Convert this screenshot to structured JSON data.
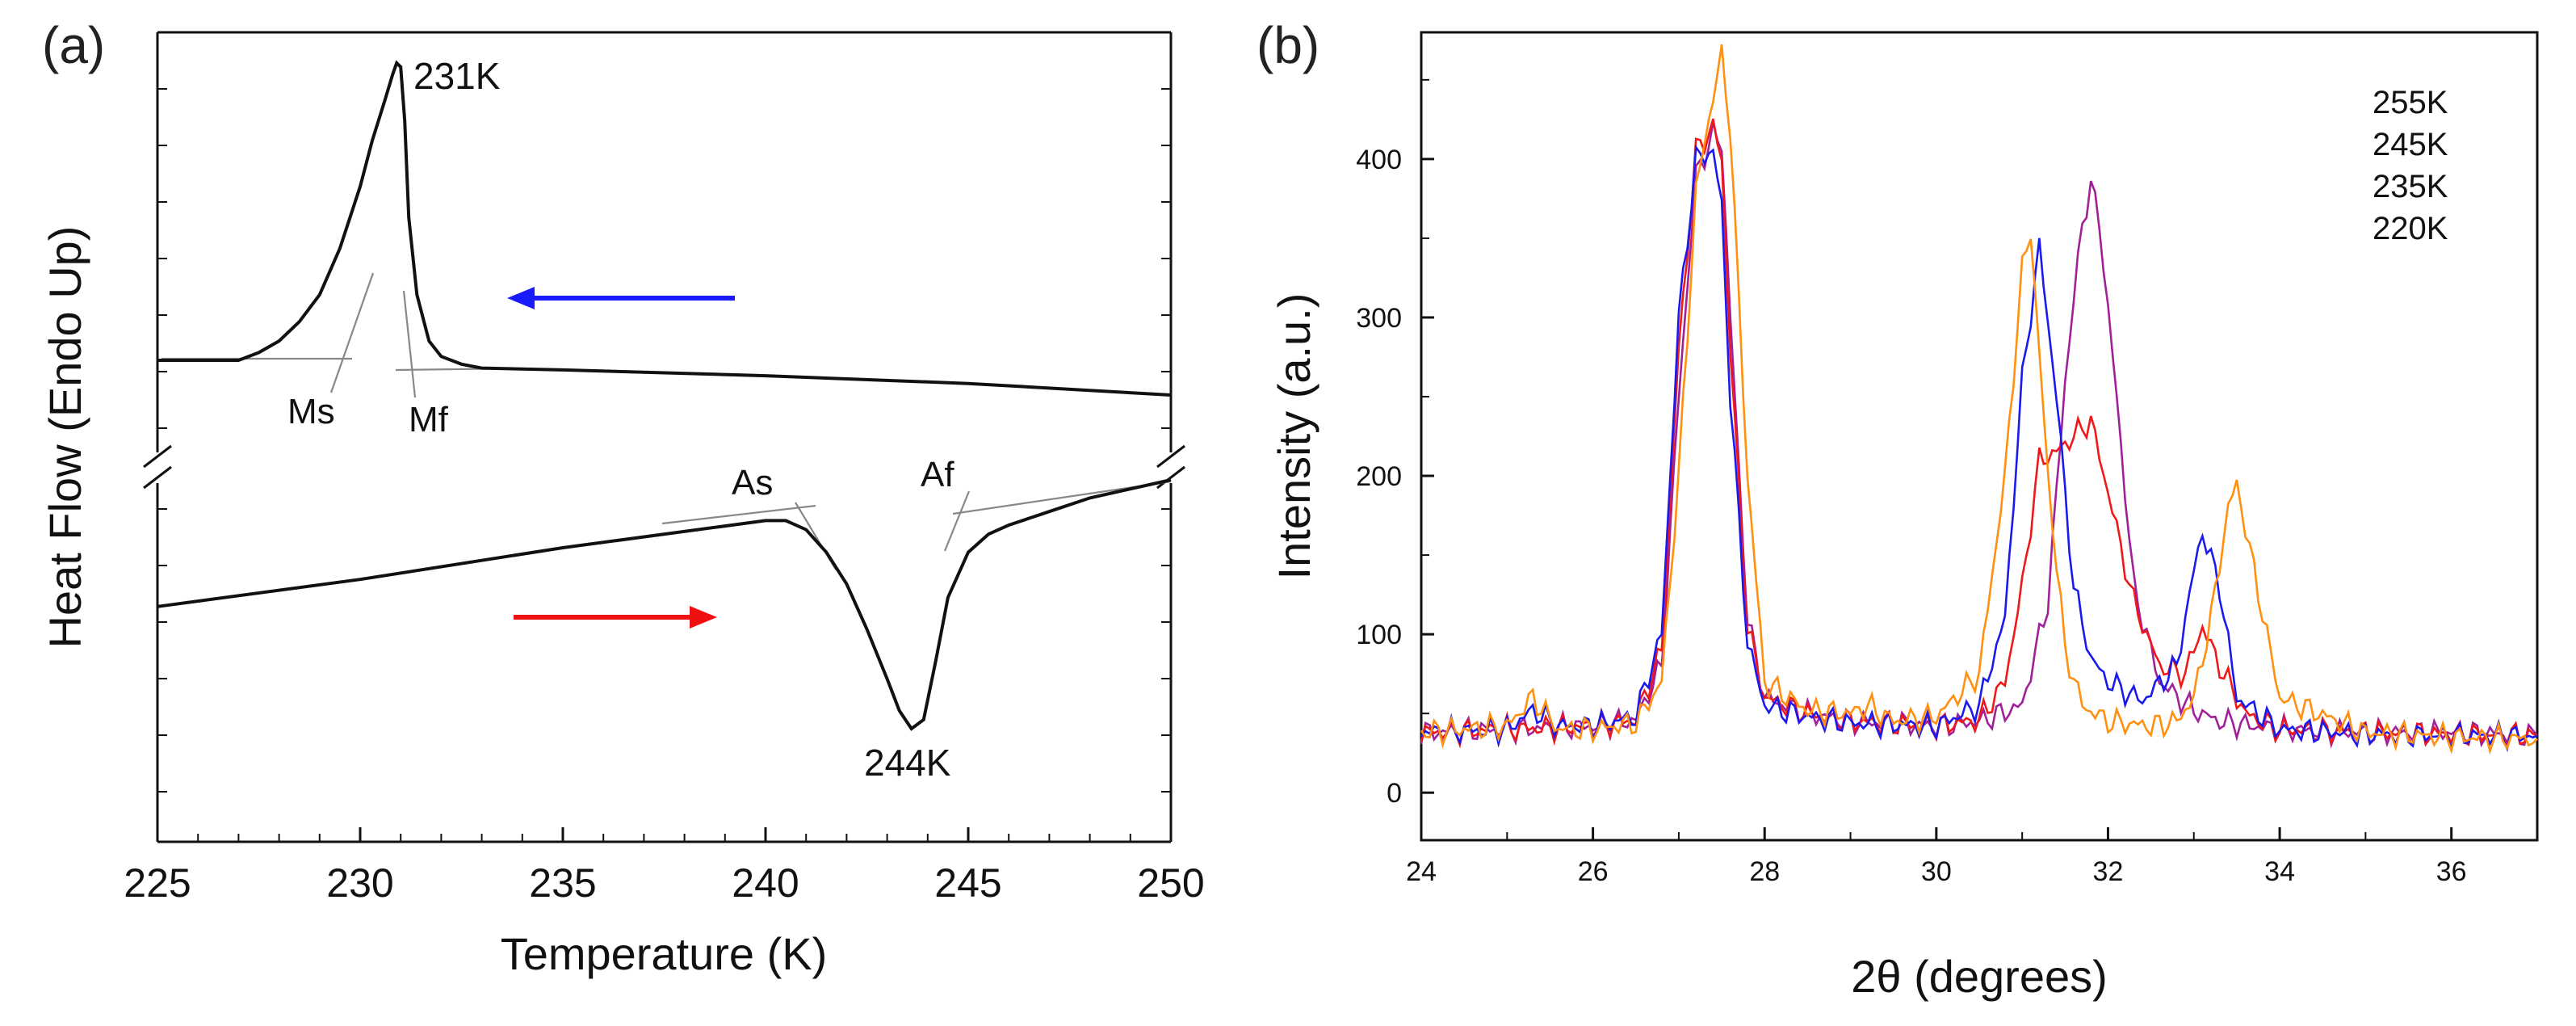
{
  "chart_data": [
    {
      "panel": "(a)",
      "type": "line",
      "title": "",
      "xlabel": "Temperature (K)",
      "ylabel": "Heat Flow (Endo Up)",
      "xlim": [
        225,
        250
      ],
      "x_ticks": [
        225,
        230,
        235,
        240,
        245,
        250
      ],
      "y_ticks_shown": false,
      "y_axis_break": true,
      "series": [
        {
          "name": "cooling",
          "direction": "cooling (leftward arrow)",
          "arrow_color": "#1a1aff",
          "line_color": "#111111",
          "x": [
            225,
            226,
            227,
            227.5,
            228,
            228.5,
            229,
            229.5,
            230,
            230.3,
            230.6,
            230.8,
            230.9,
            231.0,
            231.1,
            231.2,
            231.4,
            231.7,
            232,
            232.5,
            233,
            235,
            240,
            245,
            250
          ],
          "y": [
            0.23,
            0.23,
            0.23,
            0.25,
            0.28,
            0.33,
            0.4,
            0.52,
            0.68,
            0.8,
            0.9,
            0.97,
            1.0,
            0.99,
            0.85,
            0.6,
            0.4,
            0.28,
            0.24,
            0.22,
            0.21,
            0.205,
            0.19,
            0.17,
            0.14
          ]
        },
        {
          "name": "heating",
          "direction": "heating (rightward arrow)",
          "arrow_color": "#ee1111",
          "line_color": "#111111",
          "x": [
            225,
            230,
            235,
            240,
            240.5,
            241,
            241.5,
            242,
            242.5,
            243,
            243.3,
            243.6,
            243.9,
            244.2,
            244.5,
            245,
            245.5,
            246,
            247,
            248,
            249,
            250
          ],
          "y": [
            0.5,
            0.56,
            0.63,
            0.69,
            0.69,
            0.67,
            0.62,
            0.55,
            0.45,
            0.34,
            0.27,
            0.23,
            0.25,
            0.38,
            0.52,
            0.62,
            0.66,
            0.68,
            0.71,
            0.74,
            0.76,
            0.78
          ]
        }
      ],
      "annotations": [
        {
          "text": "231K",
          "x": 231.0,
          "y": 1.0
        },
        {
          "text": "244K",
          "x": 243.6,
          "y": 0.23
        },
        {
          "text": "Ms",
          "x": 229.7
        },
        {
          "text": "Mf",
          "x": 231.3
        },
        {
          "text": "As",
          "x": 241.5
        },
        {
          "text": "Af",
          "x": 244.8
        }
      ]
    },
    {
      "panel": "(b)",
      "type": "line",
      "title": "",
      "xlabel": "2θ (degrees)",
      "ylabel": "Intensity (a.u.)",
      "xlim": [
        24,
        37
      ],
      "ylim": [
        -30,
        480
      ],
      "x_ticks": [
        24,
        26,
        28,
        30,
        32,
        34,
        36
      ],
      "y_ticks": [
        0,
        100,
        200,
        300,
        400
      ],
      "legend_position": "top-right",
      "series": [
        {
          "name": "255K",
          "color": "#a0209a",
          "x": [
            24,
            25,
            26,
            26.5,
            26.8,
            27.0,
            27.2,
            27.4,
            27.5,
            27.6,
            27.8,
            28.0,
            28.5,
            29,
            30,
            30.5,
            31.0,
            31.3,
            31.5,
            31.7,
            31.8,
            31.9,
            32.1,
            32.3,
            32.6,
            33.0,
            33.3,
            34,
            35,
            36,
            37
          ],
          "values": [
            38,
            40,
            42,
            46,
            80,
            250,
            390,
            415,
            410,
            300,
            110,
            60,
            50,
            45,
            42,
            45,
            55,
            120,
            260,
            360,
            383,
            360,
            250,
            130,
            70,
            52,
            45,
            40,
            38,
            38,
            36
          ]
        },
        {
          "name": "245K",
          "color": "#f01818",
          "x": [
            24,
            25,
            26,
            26.5,
            26.8,
            27.0,
            27.2,
            27.4,
            27.5,
            27.6,
            27.8,
            28.0,
            28.5,
            29,
            30,
            30.5,
            30.8,
            31.0,
            31.2,
            31.4,
            31.6,
            31.8,
            32.0,
            32.3,
            32.6,
            32.9,
            33.1,
            33.3,
            33.6,
            34,
            35,
            36,
            37
          ],
          "values": [
            38,
            40,
            42,
            46,
            90,
            280,
            405,
            420,
            400,
            280,
            105,
            60,
            50,
            45,
            42,
            46,
            70,
            130,
            210,
            215,
            225,
            235,
            190,
            120,
            80,
            75,
            105,
            80,
            50,
            40,
            38,
            37,
            36
          ]
        },
        {
          "name": "235K",
          "color": "#1a1aee",
          "x": [
            24,
            25,
            25.3,
            25.6,
            26,
            26.5,
            26.8,
            27.0,
            27.2,
            27.4,
            27.5,
            27.6,
            27.8,
            28.0,
            28.5,
            29,
            30,
            30.5,
            30.8,
            31.0,
            31.2,
            31.4,
            31.6,
            31.8,
            32.0,
            32.4,
            32.8,
            33.0,
            33.1,
            33.3,
            33.5,
            34,
            35,
            36,
            37
          ],
          "values": [
            38,
            40,
            52,
            42,
            42,
            48,
            100,
            300,
            400,
            405,
            370,
            250,
            95,
            55,
            48,
            44,
            42,
            55,
            110,
            260,
            345,
            250,
            130,
            85,
            70,
            58,
            80,
            140,
            165,
            130,
            60,
            40,
            37,
            36,
            36
          ]
        },
        {
          "name": "220K",
          "color": "#ff9010",
          "x": [
            24,
            25,
            25.3,
            25.6,
            26,
            26.5,
            26.8,
            27.0,
            27.2,
            27.4,
            27.5,
            27.6,
            27.8,
            28.0,
            28.5,
            29,
            29.2,
            29.5,
            30,
            30.5,
            30.8,
            31.0,
            31.1,
            31.3,
            31.5,
            31.7,
            32,
            32.5,
            32.8,
            33.0,
            33.2,
            33.4,
            33.5,
            33.7,
            34,
            35,
            36,
            37
          ],
          "values": [
            38,
            42,
            60,
            40,
            40,
            44,
            70,
            200,
            380,
            440,
            465,
            420,
            200,
            70,
            52,
            50,
            55,
            45,
            48,
            75,
            200,
            330,
            355,
            200,
            90,
            55,
            45,
            42,
            45,
            60,
            110,
            180,
            195,
            140,
            60,
            38,
            35,
            34
          ]
        }
      ]
    }
  ]
}
